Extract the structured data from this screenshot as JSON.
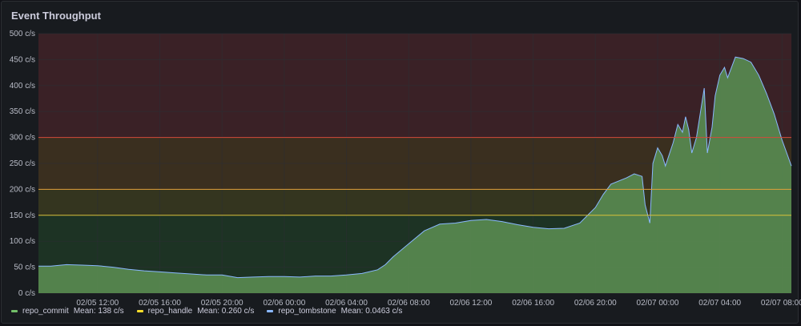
{
  "panel": {
    "title": "Event Throughput"
  },
  "colors": {
    "background": "#181b1f",
    "grid": "#2c2f34",
    "series_fill": "#56874f",
    "series_line": "#8ab8ff",
    "threshold_red": "#d44a3a",
    "threshold_orange": "#e0a13a",
    "threshold_yellow": "#d9c13a"
  },
  "legend": [
    {
      "name": "repo_commit",
      "mean_label": "Mean: 138 c/s",
      "color": "#73bf69"
    },
    {
      "name": "repo_handle",
      "mean_label": "Mean: 0.260 c/s",
      "color": "#fade2a"
    },
    {
      "name": "repo_tombstone",
      "mean_label": "Mean: 0.0463 c/s",
      "color": "#8ab8ff"
    }
  ],
  "chart_data": {
    "type": "area",
    "title": "Event Throughput",
    "unit": "c/s",
    "ylim": [
      0,
      500
    ],
    "y_ticks": [
      "0 c/s",
      "50 c/s",
      "100 c/s",
      "150 c/s",
      "200 c/s",
      "250 c/s",
      "300 c/s",
      "350 c/s",
      "400 c/s",
      "450 c/s",
      "500 c/s"
    ],
    "x_ticks": [
      "02/05 12:00",
      "02/05 16:00",
      "02/05 20:00",
      "02/06 00:00",
      "02/06 04:00",
      "02/06 08:00",
      "02/06 12:00",
      "02/06 16:00",
      "02/06 20:00",
      "02/07 00:00",
      "02/07 04:00",
      "02/07 08:00"
    ],
    "x_tick_hours": [
      12,
      16,
      20,
      24,
      28,
      32,
      36,
      40,
      44,
      48,
      52,
      56
    ],
    "x_range_hours": [
      8.2,
      56.6
    ],
    "grid": true,
    "thresholds": [
      {
        "value": 150,
        "color": "#d9c13a"
      },
      {
        "value": 200,
        "color": "#e0a13a"
      },
      {
        "value": 300,
        "color": "#d44a3a"
      }
    ],
    "threshold_bands": [
      {
        "from": 0,
        "to": 150,
        "color": "#1d3324"
      },
      {
        "from": 150,
        "to": 200,
        "color": "#34351f"
      },
      {
        "from": 200,
        "to": 300,
        "color": "#3a2f1f"
      },
      {
        "from": 300,
        "to": 500,
        "color": "#3a2126"
      }
    ],
    "series": [
      {
        "name": "repo_commit",
        "x": [
          8.2,
          9,
          10,
          11,
          12,
          13,
          14,
          15,
          16,
          17,
          18,
          19,
          20,
          21,
          22,
          23,
          24,
          25,
          26,
          27,
          28,
          29,
          30,
          30.5,
          31,
          32,
          33,
          34,
          35,
          36,
          37,
          38,
          39,
          40,
          41,
          42,
          43,
          44,
          44.5,
          45,
          46,
          46.5,
          47,
          47.2,
          47.5,
          47.7,
          48,
          48.3,
          48.5,
          49,
          49.3,
          49.6,
          49.8,
          50,
          50.2,
          50.5,
          51,
          51.2,
          51.5,
          51.7,
          52,
          52.3,
          52.5,
          53,
          53.5,
          54,
          54.5,
          55,
          55.5,
          56,
          56.3,
          56.6
        ],
        "values": [
          52,
          52,
          55,
          54,
          53,
          50,
          46,
          43,
          41,
          39,
          37,
          35,
          35,
          30,
          31,
          32,
          32,
          31,
          33,
          33,
          35,
          38,
          45,
          55,
          70,
          95,
          120,
          133,
          135,
          140,
          142,
          138,
          132,
          127,
          124,
          125,
          135,
          165,
          190,
          210,
          222,
          230,
          225,
          170,
          135,
          250,
          280,
          265,
          245,
          290,
          325,
          310,
          340,
          315,
          270,
          300,
          395,
          270,
          320,
          380,
          420,
          435,
          415,
          455,
          452,
          445,
          420,
          385,
          345,
          295,
          270,
          245
        ]
      }
    ]
  }
}
